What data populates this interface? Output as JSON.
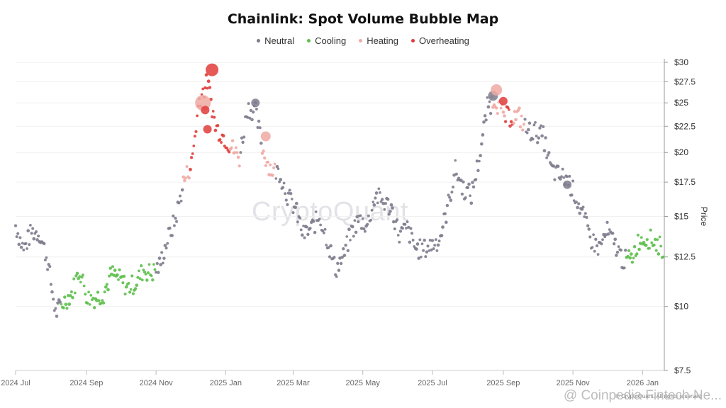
{
  "chart_data": {
    "type": "scatter",
    "title": "Chainlink: Spot Volume Bubble Map",
    "ylabel": "Price",
    "y_scale": "log",
    "ylim": [
      7.5,
      30
    ],
    "y_ticks": [
      "$7.5",
      "$10",
      "$12.5",
      "$15",
      "$17.5",
      "$20",
      "$22.5",
      "$25",
      "$27.5",
      "$30"
    ],
    "y_tick_values": [
      7.5,
      10,
      12.5,
      15,
      17.5,
      20,
      22.5,
      25,
      27.5,
      30
    ],
    "x_ticks": [
      "2024 Jul",
      "2024 Sep",
      "2024 Nov",
      "2025 Jan",
      "2025 Mar",
      "2025 May",
      "2025 Jul",
      "2025 Sep",
      "2025 Nov",
      "2026 Jan"
    ],
    "x_tick_dates": [
      "2024-07-01",
      "2024-09-01",
      "2024-11-01",
      "2025-01-01",
      "2025-03-01",
      "2025-05-01",
      "2025-07-01",
      "2025-09-01",
      "2025-11-01",
      "2026-01-01"
    ],
    "xlim": [
      "2024-07-01",
      "2026-01-20"
    ],
    "grid": true,
    "legend_position": "top",
    "legend": [
      {
        "name": "Neutral",
        "color": "#7d7b8c"
      },
      {
        "name": "Cooling",
        "color": "#5cbf4a"
      },
      {
        "name": "Heating",
        "color": "#f0a9a3"
      },
      {
        "name": "Overheating",
        "color": "#e03c3a"
      }
    ],
    "price_path": [
      [
        "2024-07-01",
        14.4
      ],
      [
        "2024-07-08",
        12.9
      ],
      [
        "2024-07-15",
        14.0
      ],
      [
        "2024-07-22",
        13.9
      ],
      [
        "2024-07-29",
        12.3
      ],
      [
        "2024-08-05",
        9.7
      ],
      [
        "2024-08-12",
        10.2
      ],
      [
        "2024-08-19",
        10.6
      ],
      [
        "2024-08-26",
        11.8
      ],
      [
        "2024-09-02",
        10.4
      ],
      [
        "2024-09-09",
        10.4
      ],
      [
        "2024-09-16",
        10.6
      ],
      [
        "2024-09-23",
        11.6
      ],
      [
        "2024-09-30",
        11.3
      ],
      [
        "2024-10-07",
        10.9
      ],
      [
        "2024-10-14",
        11.1
      ],
      [
        "2024-10-21",
        11.8
      ],
      [
        "2024-10-28",
        11.6
      ],
      [
        "2024-11-04",
        12.0
      ],
      [
        "2024-11-11",
        13.5
      ],
      [
        "2024-11-18",
        14.8
      ],
      [
        "2024-11-25",
        17.5
      ],
      [
        "2024-12-02",
        19.0
      ],
      [
        "2024-12-09",
        25.5
      ],
      [
        "2024-12-16",
        27.5
      ],
      [
        "2024-12-23",
        22.5
      ],
      [
        "2024-12-30",
        21.5
      ],
      [
        "2025-01-06",
        20.5
      ],
      [
        "2025-01-13",
        19.5
      ],
      [
        "2025-01-20",
        24.5
      ],
      [
        "2025-01-27",
        24.0
      ],
      [
        "2025-02-03",
        20.0
      ],
      [
        "2025-02-10",
        18.5
      ],
      [
        "2025-02-17",
        18.3
      ],
      [
        "2025-02-24",
        16.5
      ],
      [
        "2025-03-03",
        15.5
      ],
      [
        "2025-03-10",
        13.8
      ],
      [
        "2025-03-17",
        14.2
      ],
      [
        "2025-03-24",
        15.0
      ],
      [
        "2025-03-31",
        13.5
      ],
      [
        "2025-04-07",
        11.8
      ],
      [
        "2025-04-14",
        12.5
      ],
      [
        "2025-04-21",
        14.0
      ],
      [
        "2025-04-28",
        14.8
      ],
      [
        "2025-05-05",
        14.4
      ],
      [
        "2025-05-12",
        16.5
      ],
      [
        "2025-05-19",
        16.0
      ],
      [
        "2025-05-26",
        15.6
      ],
      [
        "2025-06-02",
        13.8
      ],
      [
        "2025-06-09",
        14.2
      ],
      [
        "2025-06-16",
        13.0
      ],
      [
        "2025-06-23",
        12.9
      ],
      [
        "2025-06-30",
        13.2
      ],
      [
        "2025-07-07",
        13.5
      ],
      [
        "2025-07-14",
        15.5
      ],
      [
        "2025-07-21",
        18.5
      ],
      [
        "2025-07-28",
        17.0
      ],
      [
        "2025-08-04",
        16.5
      ],
      [
        "2025-08-11",
        19.5
      ],
      [
        "2025-08-18",
        24.5
      ],
      [
        "2025-08-25",
        25.5
      ],
      [
        "2025-09-01",
        23.5
      ],
      [
        "2025-09-08",
        23.5
      ],
      [
        "2025-09-15",
        23.5
      ],
      [
        "2025-09-22",
        22.0
      ],
      [
        "2025-09-29",
        22.0
      ],
      [
        "2025-10-06",
        21.5
      ],
      [
        "2025-10-13",
        18.5
      ],
      [
        "2025-10-20",
        18.0
      ],
      [
        "2025-10-27",
        17.8
      ],
      [
        "2025-11-03",
        16.5
      ],
      [
        "2025-11-10",
        15.0
      ],
      [
        "2025-11-17",
        13.5
      ],
      [
        "2025-11-24",
        13.0
      ],
      [
        "2025-12-01",
        14.0
      ],
      [
        "2025-12-08",
        13.2
      ],
      [
        "2025-12-15",
        12.3
      ],
      [
        "2025-12-22",
        12.4
      ],
      [
        "2025-12-29",
        13.5
      ],
      [
        "2026-01-05",
        13.6
      ],
      [
        "2026-01-12",
        13.4
      ],
      [
        "2026-01-19",
        12.9
      ]
    ],
    "phases": [
      {
        "from": "2024-07-01",
        "to": "2024-08-10",
        "status": "Neutral"
      },
      {
        "from": "2024-08-10",
        "to": "2024-11-01",
        "status": "Cooling"
      },
      {
        "from": "2024-11-01",
        "to": "2024-11-25",
        "status": "Neutral"
      },
      {
        "from": "2024-11-25",
        "to": "2024-12-01",
        "status": "Heating"
      },
      {
        "from": "2024-12-01",
        "to": "2025-01-05",
        "status": "Overheating"
      },
      {
        "from": "2025-01-05",
        "to": "2025-01-14",
        "status": "Heating"
      },
      {
        "from": "2025-01-14",
        "to": "2025-02-02",
        "status": "Neutral"
      },
      {
        "from": "2025-02-02",
        "to": "2025-02-14",
        "status": "Heating"
      },
      {
        "from": "2025-02-14",
        "to": "2025-08-22",
        "status": "Neutral"
      },
      {
        "from": "2025-08-22",
        "to": "2025-09-03",
        "status": "Heating"
      },
      {
        "from": "2025-09-03",
        "to": "2025-09-10",
        "status": "Overheating"
      },
      {
        "from": "2025-09-10",
        "to": "2025-09-20",
        "status": "Heating"
      },
      {
        "from": "2025-09-20",
        "to": "2025-12-18",
        "status": "Neutral"
      },
      {
        "from": "2025-12-18",
        "to": "2025-12-28",
        "status": "Cooling"
      },
      {
        "from": "2025-12-28",
        "to": "2026-01-20",
        "status": "Cooling"
      }
    ],
    "large_bubbles": [
      {
        "date": "2024-12-12",
        "price": 25.0,
        "status": "Heating",
        "size": 11
      },
      {
        "date": "2024-12-20",
        "price": 29.0,
        "status": "Overheating",
        "size": 9
      },
      {
        "date": "2024-12-14",
        "price": 24.2,
        "status": "Overheating",
        "size": 6
      },
      {
        "date": "2024-12-16",
        "price": 22.2,
        "status": "Overheating",
        "size": 6
      },
      {
        "date": "2025-01-27",
        "price": 25.0,
        "status": "Neutral",
        "size": 6
      },
      {
        "date": "2025-02-05",
        "price": 21.5,
        "status": "Heating",
        "size": 7
      },
      {
        "date": "2025-08-23",
        "price": 25.8,
        "status": "Neutral",
        "size": 7
      },
      {
        "date": "2025-08-26",
        "price": 26.5,
        "status": "Heating",
        "size": 8
      },
      {
        "date": "2025-09-01",
        "price": 25.2,
        "status": "Overheating",
        "size": 6
      },
      {
        "date": "2025-10-27",
        "price": 17.3,
        "status": "Neutral",
        "size": 6
      }
    ]
  },
  "watermark": "CryptoQuant",
  "footer_watermark": "@ Coinpedia Fintech Ne...",
  "copyright": "© CryptoQuant. All rights reserved"
}
